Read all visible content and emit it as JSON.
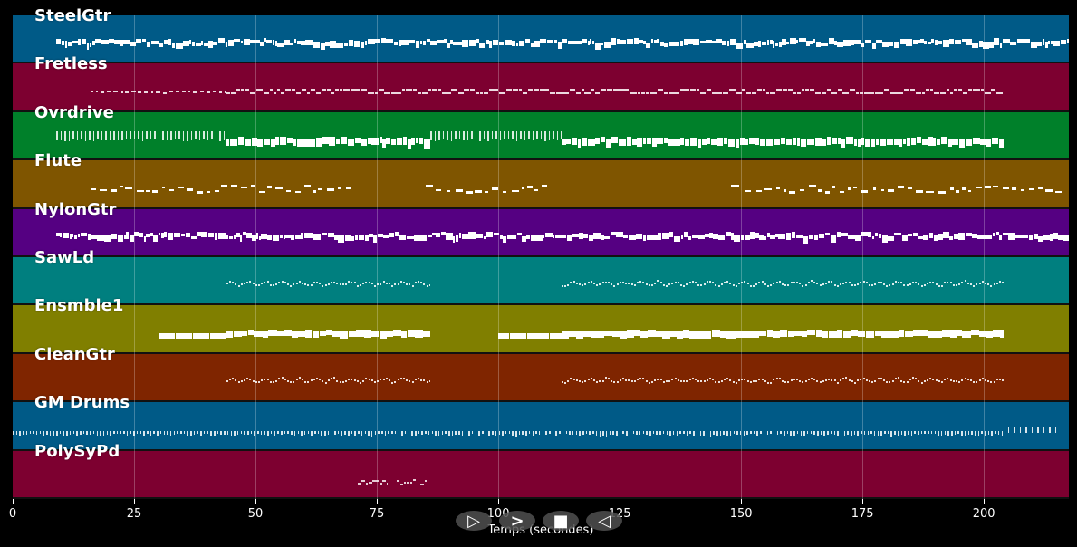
{
  "chart_data": {
    "type": "piano-roll",
    "xlabel": "Temps (secondes)",
    "ylabel": "",
    "xlim": [
      0,
      217.5
    ],
    "xticks": [
      0,
      25,
      50,
      75,
      100,
      125,
      150,
      175,
      200
    ],
    "grid": true,
    "tracks": [
      {
        "name": "SteelGtr",
        "color": "#005a87",
        "segments": [
          {
            "start": 9,
            "end": 217.5,
            "style": "dense"
          }
        ]
      },
      {
        "name": "Fretless",
        "color": "#7d0030",
        "segments": [
          {
            "start": 16,
            "end": 44,
            "style": "sparse"
          },
          {
            "start": 44,
            "end": 204,
            "style": "double"
          }
        ]
      },
      {
        "name": "Ovrdrive",
        "color": "#00802a",
        "segments": [
          {
            "start": 9,
            "end": 44,
            "style": "ticks"
          },
          {
            "start": 44,
            "end": 86,
            "style": "blocks"
          },
          {
            "start": 86,
            "end": 113,
            "style": "ticks"
          },
          {
            "start": 113,
            "end": 204,
            "style": "blocks"
          }
        ]
      },
      {
        "name": "Flute",
        "color": "#7f5500",
        "segments": [
          {
            "start": 16,
            "end": 70,
            "style": "melody"
          },
          {
            "start": 85,
            "end": 110,
            "style": "melody"
          },
          {
            "start": 148,
            "end": 216,
            "style": "melody"
          }
        ]
      },
      {
        "name": "NylonGtr",
        "color": "#550082",
        "segments": [
          {
            "start": 9,
            "end": 217.5,
            "style": "dense"
          }
        ]
      },
      {
        "name": "SawLd",
        "color": "#007f7f",
        "segments": [
          {
            "start": 44,
            "end": 86,
            "style": "wave"
          },
          {
            "start": 113,
            "end": 204,
            "style": "wave"
          }
        ]
      },
      {
        "name": "Ensmble1",
        "color": "#807f00",
        "segments": [
          {
            "start": 30,
            "end": 44,
            "style": "bar-low"
          },
          {
            "start": 44,
            "end": 86,
            "style": "bar"
          },
          {
            "start": 100,
            "end": 113,
            "style": "bar-low"
          },
          {
            "start": 113,
            "end": 204,
            "style": "bar"
          }
        ]
      },
      {
        "name": "CleanGtr",
        "color": "#7f2500",
        "segments": [
          {
            "start": 44,
            "end": 86,
            "style": "wave"
          },
          {
            "start": 113,
            "end": 204,
            "style": "wave"
          }
        ]
      },
      {
        "name": "GM Drums",
        "color": "#005a87",
        "segments": [
          {
            "start": 0,
            "end": 204,
            "style": "drums"
          },
          {
            "start": 205,
            "end": 215,
            "style": "drums-sparse"
          }
        ]
      },
      {
        "name": "PolySyPd",
        "color": "#7d0030",
        "segments": [
          {
            "start": 71,
            "end": 77,
            "style": "chord"
          },
          {
            "start": 79,
            "end": 83,
            "style": "chord"
          },
          {
            "start": 84,
            "end": 85.5,
            "style": "chord"
          }
        ]
      }
    ]
  },
  "controls": {
    "play": "▷",
    "forward": ">",
    "stop": "■",
    "back": "◁"
  }
}
